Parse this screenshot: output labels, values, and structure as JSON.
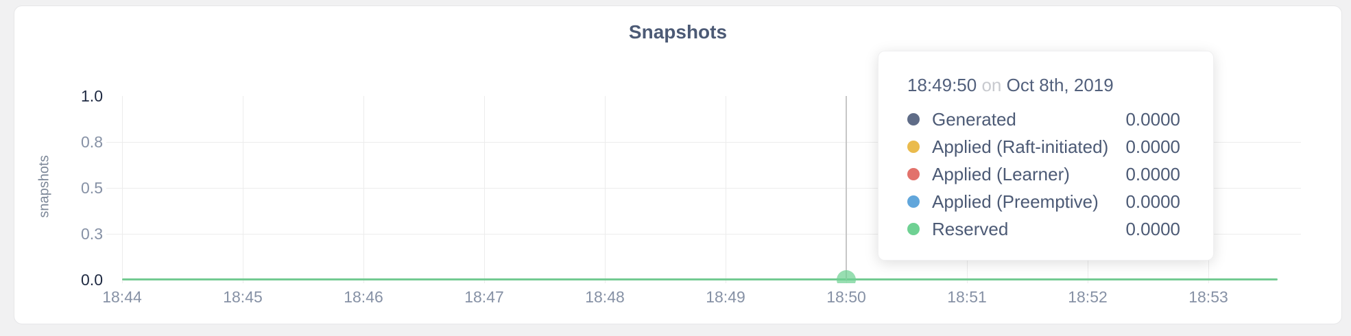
{
  "page_background": "#f1f1f2",
  "chart_title": "Snapshots",
  "y_axis_title": "snapshots",
  "tooltip": {
    "time": "18:49:50",
    "connector": "on",
    "date": "Oct 8th, 2019",
    "rows": [
      {
        "label": "Generated",
        "value": "0.0000",
        "color": "#5F6C87"
      },
      {
        "label": "Applied (Raft-initiated)",
        "value": "0.0000",
        "color": "#EABB4D"
      },
      {
        "label": "Applied (Learner)",
        "value": "0.0000",
        "color": "#E2726B"
      },
      {
        "label": "Applied (Preemptive)",
        "value": "0.0000",
        "color": "#61A6DB"
      },
      {
        "label": "Reserved",
        "value": "0.0000",
        "color": "#6FD193"
      }
    ]
  },
  "chart_data": {
    "type": "line",
    "title": "Snapshots",
    "xlabel": "",
    "ylabel": "snapshots",
    "ylim": [
      0,
      1
    ],
    "y_tick_labels": [
      "0.0",
      "0.3",
      "0.5",
      "0.8",
      "1.0"
    ],
    "y_tick_values": [
      0,
      0.25,
      0.5,
      0.75,
      1.0
    ],
    "x_tick_labels": [
      "18:44",
      "18:45",
      "18:46",
      "18:47",
      "18:48",
      "18:49",
      "18:50",
      "18:51",
      "18:52",
      "18:53"
    ],
    "grid": true,
    "legend_position": "tooltip",
    "hover": {
      "x_label": "18:50",
      "time": "18:49:50",
      "date": "Oct 8th, 2019"
    },
    "line_color": "#73CA92",
    "hover_point_color": "#6FD193",
    "series": [
      {
        "name": "Generated",
        "color": "#5F6C87",
        "values": [
          0,
          0,
          0,
          0,
          0,
          0,
          0,
          0,
          0,
          0
        ]
      },
      {
        "name": "Applied (Raft-initiated)",
        "color": "#EABB4D",
        "values": [
          0,
          0,
          0,
          0,
          0,
          0,
          0,
          0,
          0,
          0
        ]
      },
      {
        "name": "Applied (Learner)",
        "color": "#E2726B",
        "values": [
          0,
          0,
          0,
          0,
          0,
          0,
          0,
          0,
          0,
          0
        ]
      },
      {
        "name": "Applied (Preemptive)",
        "color": "#61A6DB",
        "values": [
          0,
          0,
          0,
          0,
          0,
          0,
          0,
          0,
          0,
          0
        ]
      },
      {
        "name": "Reserved",
        "color": "#6FD193",
        "values": [
          0,
          0,
          0,
          0,
          0,
          0,
          0,
          0,
          0,
          0
        ]
      }
    ]
  }
}
